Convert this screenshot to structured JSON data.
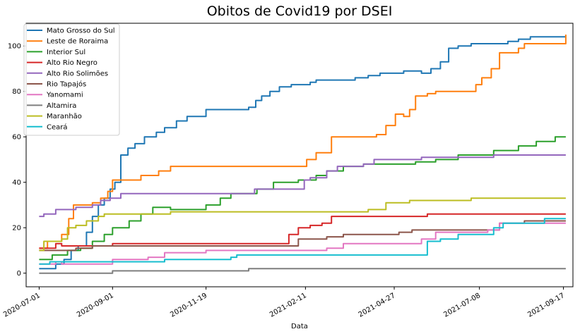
{
  "chart_data": {
    "type": "line",
    "title": "Obitos de Covid19 por DSEI",
    "xlabel": "Data",
    "ylabel": "",
    "x_ticks": [
      "2020-07-01",
      "2020-09-01",
      "2020-11-19",
      "2021-02-11",
      "2021-04-27",
      "2021-07-08",
      "2021-09-17"
    ],
    "y_ticks": [
      0,
      20,
      40,
      60,
      80,
      100
    ],
    "ylim": [
      -6,
      110
    ],
    "xlim": [
      "2020-06-20",
      "2021-09-25"
    ],
    "grid": false,
    "legend_position": "top-left",
    "series": [
      {
        "name": "Mato Grosso do Sul",
        "color": "#1f77b4",
        "points": [
          [
            "2020-07-01",
            2
          ],
          [
            "2020-07-10",
            2
          ],
          [
            "2020-07-15",
            4
          ],
          [
            "2020-07-22",
            6
          ],
          [
            "2020-07-28",
            10
          ],
          [
            "2020-08-03",
            12
          ],
          [
            "2020-08-10",
            18
          ],
          [
            "2020-08-15",
            25
          ],
          [
            "2020-08-20",
            30
          ],
          [
            "2020-08-25",
            33
          ],
          [
            "2020-08-30",
            37
          ],
          [
            "2020-09-03",
            40
          ],
          [
            "2020-09-08",
            52
          ],
          [
            "2020-09-14",
            55
          ],
          [
            "2020-09-20",
            57
          ],
          [
            "2020-09-28",
            60
          ],
          [
            "2020-10-08",
            62
          ],
          [
            "2020-10-15",
            64
          ],
          [
            "2020-10-25",
            67
          ],
          [
            "2020-11-03",
            69
          ],
          [
            "2020-11-19",
            72
          ],
          [
            "2020-12-25",
            73
          ],
          [
            "2020-12-31",
            76
          ],
          [
            "2021-01-05",
            78
          ],
          [
            "2021-01-12",
            80
          ],
          [
            "2021-01-20",
            82
          ],
          [
            "2021-01-30",
            83
          ],
          [
            "2021-02-15",
            84
          ],
          [
            "2021-02-20",
            85
          ],
          [
            "2021-03-25",
            86
          ],
          [
            "2021-04-05",
            87
          ],
          [
            "2021-04-15",
            88
          ],
          [
            "2021-05-05",
            89
          ],
          [
            "2021-05-20",
            88
          ],
          [
            "2021-05-28",
            90
          ],
          [
            "2021-06-05",
            93
          ],
          [
            "2021-06-12",
            99
          ],
          [
            "2021-06-20",
            100
          ],
          [
            "2021-07-01",
            101
          ],
          [
            "2021-08-01",
            102
          ],
          [
            "2021-08-10",
            103
          ],
          [
            "2021-08-20",
            104
          ],
          [
            "2021-09-19",
            104
          ]
        ]
      },
      {
        "name": "Leste de Roraima",
        "color": "#ff7f0e",
        "points": [
          [
            "2020-07-01",
            11
          ],
          [
            "2020-07-08",
            14
          ],
          [
            "2020-07-20",
            17
          ],
          [
            "2020-07-26",
            24
          ],
          [
            "2020-07-30",
            30
          ],
          [
            "2020-08-05",
            30
          ],
          [
            "2020-08-15",
            31
          ],
          [
            "2020-08-22",
            33
          ],
          [
            "2020-08-28",
            36
          ],
          [
            "2020-09-01",
            41
          ],
          [
            "2020-09-25",
            43
          ],
          [
            "2020-10-10",
            45
          ],
          [
            "2020-10-20",
            47
          ],
          [
            "2021-02-05",
            47
          ],
          [
            "2021-02-12",
            50
          ],
          [
            "2021-02-20",
            53
          ],
          [
            "2021-03-05",
            60
          ],
          [
            "2021-04-05",
            60
          ],
          [
            "2021-04-12",
            61
          ],
          [
            "2021-04-20",
            65
          ],
          [
            "2021-04-28",
            70
          ],
          [
            "2021-05-05",
            69
          ],
          [
            "2021-05-10",
            72
          ],
          [
            "2021-05-15",
            78
          ],
          [
            "2021-05-25",
            79
          ],
          [
            "2021-06-01",
            80
          ],
          [
            "2021-07-01",
            80
          ],
          [
            "2021-07-05",
            83
          ],
          [
            "2021-07-10",
            86
          ],
          [
            "2021-07-18",
            90
          ],
          [
            "2021-07-25",
            97
          ],
          [
            "2021-08-10",
            99
          ],
          [
            "2021-08-15",
            101
          ],
          [
            "2021-09-14",
            101
          ],
          [
            "2021-09-19",
            105
          ]
        ]
      },
      {
        "name": "Interior Sul",
        "color": "#2ca02c",
        "points": [
          [
            "2020-07-01",
            6
          ],
          [
            "2020-07-12",
            8
          ],
          [
            "2020-07-25",
            10
          ],
          [
            "2020-08-05",
            11
          ],
          [
            "2020-08-15",
            14
          ],
          [
            "2020-08-25",
            17
          ],
          [
            "2020-09-01",
            20
          ],
          [
            "2020-09-15",
            23
          ],
          [
            "2020-09-25",
            26
          ],
          [
            "2020-10-05",
            29
          ],
          [
            "2020-10-20",
            28
          ],
          [
            "2020-11-19",
            30
          ],
          [
            "2020-12-01",
            33
          ],
          [
            "2020-12-10",
            35
          ],
          [
            "2021-01-01",
            37
          ],
          [
            "2021-01-15",
            40
          ],
          [
            "2021-02-05",
            41
          ],
          [
            "2021-02-20",
            43
          ],
          [
            "2021-03-01",
            45
          ],
          [
            "2021-03-15",
            47
          ],
          [
            "2021-04-01",
            48
          ],
          [
            "2021-05-15",
            49
          ],
          [
            "2021-06-01",
            50
          ],
          [
            "2021-06-20",
            52
          ],
          [
            "2021-07-20",
            54
          ],
          [
            "2021-08-10",
            56
          ],
          [
            "2021-08-25",
            58
          ],
          [
            "2021-09-10",
            60
          ],
          [
            "2021-09-19",
            60
          ]
        ]
      },
      {
        "name": "Alto Rio Negro",
        "color": "#d62728",
        "points": [
          [
            "2020-07-01",
            11
          ],
          [
            "2020-07-15",
            13
          ],
          [
            "2020-07-20",
            12
          ],
          [
            "2020-09-01",
            13
          ],
          [
            "2021-01-20",
            13
          ],
          [
            "2021-01-28",
            17
          ],
          [
            "2021-02-05",
            20
          ],
          [
            "2021-02-15",
            21
          ],
          [
            "2021-02-25",
            22
          ],
          [
            "2021-03-05",
            25
          ],
          [
            "2021-05-20",
            25
          ],
          [
            "2021-05-25",
            26
          ],
          [
            "2021-09-19",
            26
          ]
        ]
      },
      {
        "name": "Alto Rio Solimões",
        "color": "#9467bd",
        "points": [
          [
            "2020-07-01",
            25
          ],
          [
            "2020-07-05",
            26
          ],
          [
            "2020-07-15",
            28
          ],
          [
            "2020-08-01",
            29
          ],
          [
            "2020-08-15",
            30
          ],
          [
            "2020-08-22",
            32
          ],
          [
            "2020-08-30",
            33
          ],
          [
            "2020-09-08",
            35
          ],
          [
            "2020-12-20",
            35
          ],
          [
            "2020-12-30",
            37
          ],
          [
            "2021-02-10",
            41
          ],
          [
            "2021-02-15",
            42
          ],
          [
            "2021-03-01",
            45
          ],
          [
            "2021-03-10",
            47
          ],
          [
            "2021-04-01",
            48
          ],
          [
            "2021-04-10",
            50
          ],
          [
            "2021-05-20",
            51
          ],
          [
            "2021-07-20",
            52
          ],
          [
            "2021-09-19",
            52
          ]
        ]
      },
      {
        "name": "Rio Tapajós",
        "color": "#8c564b",
        "points": [
          [
            "2020-07-01",
            10
          ],
          [
            "2020-08-01",
            11
          ],
          [
            "2020-08-15",
            12
          ],
          [
            "2021-02-01",
            12
          ],
          [
            "2021-02-05",
            15
          ],
          [
            "2021-03-01",
            16
          ],
          [
            "2021-03-15",
            17
          ],
          [
            "2021-05-01",
            18
          ],
          [
            "2021-05-12",
            19
          ],
          [
            "2021-07-20",
            19
          ],
          [
            "2021-07-25",
            22
          ],
          [
            "2021-08-15",
            23
          ],
          [
            "2021-09-19",
            23
          ]
        ]
      },
      {
        "name": "Yanomami",
        "color": "#e377c2",
        "points": [
          [
            "2020-07-01",
            4
          ],
          [
            "2020-07-15",
            5
          ],
          [
            "2020-07-20",
            4
          ],
          [
            "2020-09-01",
            6
          ],
          [
            "2020-10-01",
            7
          ],
          [
            "2020-10-15",
            9
          ],
          [
            "2020-11-19",
            10
          ],
          [
            "2021-03-01",
            11
          ],
          [
            "2021-03-15",
            13
          ],
          [
            "2021-05-20",
            15
          ],
          [
            "2021-06-01",
            18
          ],
          [
            "2021-07-15",
            19
          ],
          [
            "2021-07-25",
            22
          ],
          [
            "2021-09-19",
            22
          ]
        ]
      },
      {
        "name": "Altamira",
        "color": "#7f7f7f",
        "points": [
          [
            "2020-07-01",
            0
          ],
          [
            "2020-08-30",
            0
          ],
          [
            "2020-09-01",
            1
          ],
          [
            "2020-12-20",
            1
          ],
          [
            "2020-12-25",
            2
          ],
          [
            "2021-09-19",
            2
          ]
        ]
      },
      {
        "name": "Maranhão",
        "color": "#bcbd22",
        "points": [
          [
            "2020-07-01",
            10
          ],
          [
            "2020-07-05",
            14
          ],
          [
            "2020-07-20",
            15
          ],
          [
            "2020-07-25",
            20
          ],
          [
            "2020-08-01",
            21
          ],
          [
            "2020-08-10",
            23
          ],
          [
            "2020-08-20",
            25
          ],
          [
            "2020-08-25",
            26
          ],
          [
            "2020-10-20",
            27
          ],
          [
            "2021-03-25",
            27
          ],
          [
            "2021-04-05",
            28
          ],
          [
            "2021-04-20",
            31
          ],
          [
            "2021-05-10",
            32
          ],
          [
            "2021-06-15",
            32
          ],
          [
            "2021-07-01",
            33
          ],
          [
            "2021-09-19",
            33
          ]
        ]
      },
      {
        "name": "Ceará",
        "color": "#17becf",
        "points": [
          [
            "2020-07-01",
            4
          ],
          [
            "2020-07-10",
            5
          ],
          [
            "2020-09-01",
            5
          ],
          [
            "2020-10-15",
            6
          ],
          [
            "2020-12-10",
            7
          ],
          [
            "2020-12-15",
            8
          ],
          [
            "2021-05-20",
            8
          ],
          [
            "2021-05-25",
            14
          ],
          [
            "2021-06-05",
            15
          ],
          [
            "2021-06-20",
            17
          ],
          [
            "2021-07-20",
            20
          ],
          [
            "2021-07-28",
            22
          ],
          [
            "2021-09-01",
            24
          ],
          [
            "2021-09-19",
            24
          ]
        ]
      }
    ]
  }
}
